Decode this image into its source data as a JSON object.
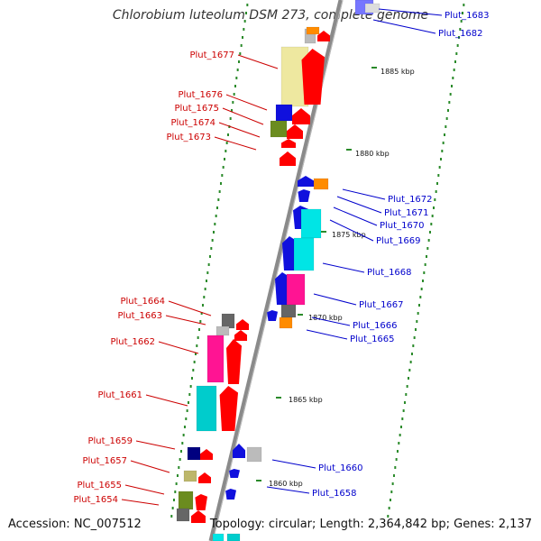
{
  "title": "Chlorobium luteolum DSM 273, complete genome",
  "footer": {
    "accession": "Accession: NC_007512",
    "summary": "Topology: circular; Length: 2,364,842 bp; Genes: 2,137"
  },
  "colors": {
    "forward_label": "#cc0000",
    "reverse_label": "#0000cc",
    "backbone": "#888888",
    "tick": "#2a8a2a"
  },
  "kbp_labels": [
    "1885 kbp",
    "1880 kbp",
    "1875 kbp",
    "1870 kbp",
    "1865 kbp",
    "1860 kbp"
  ],
  "forward_genes": [
    "Plut_1677",
    "Plut_1676",
    "Plut_1675",
    "Plut_1674",
    "Plut_1673",
    "Plut_1664",
    "Plut_1663",
    "Plut_1662",
    "Plut_1661",
    "Plut_1659",
    "Plut_1657",
    "Plut_1655",
    "Plut_1654"
  ],
  "reverse_genes": [
    "Plut_1683",
    "Plut_1682",
    "Plut_1672",
    "Plut_1671",
    "Plut_1670",
    "Plut_1669",
    "Plut_1668",
    "Plut_1667",
    "Plut_1666",
    "Plut_1665",
    "Plut_1660",
    "Plut_1658"
  ]
}
